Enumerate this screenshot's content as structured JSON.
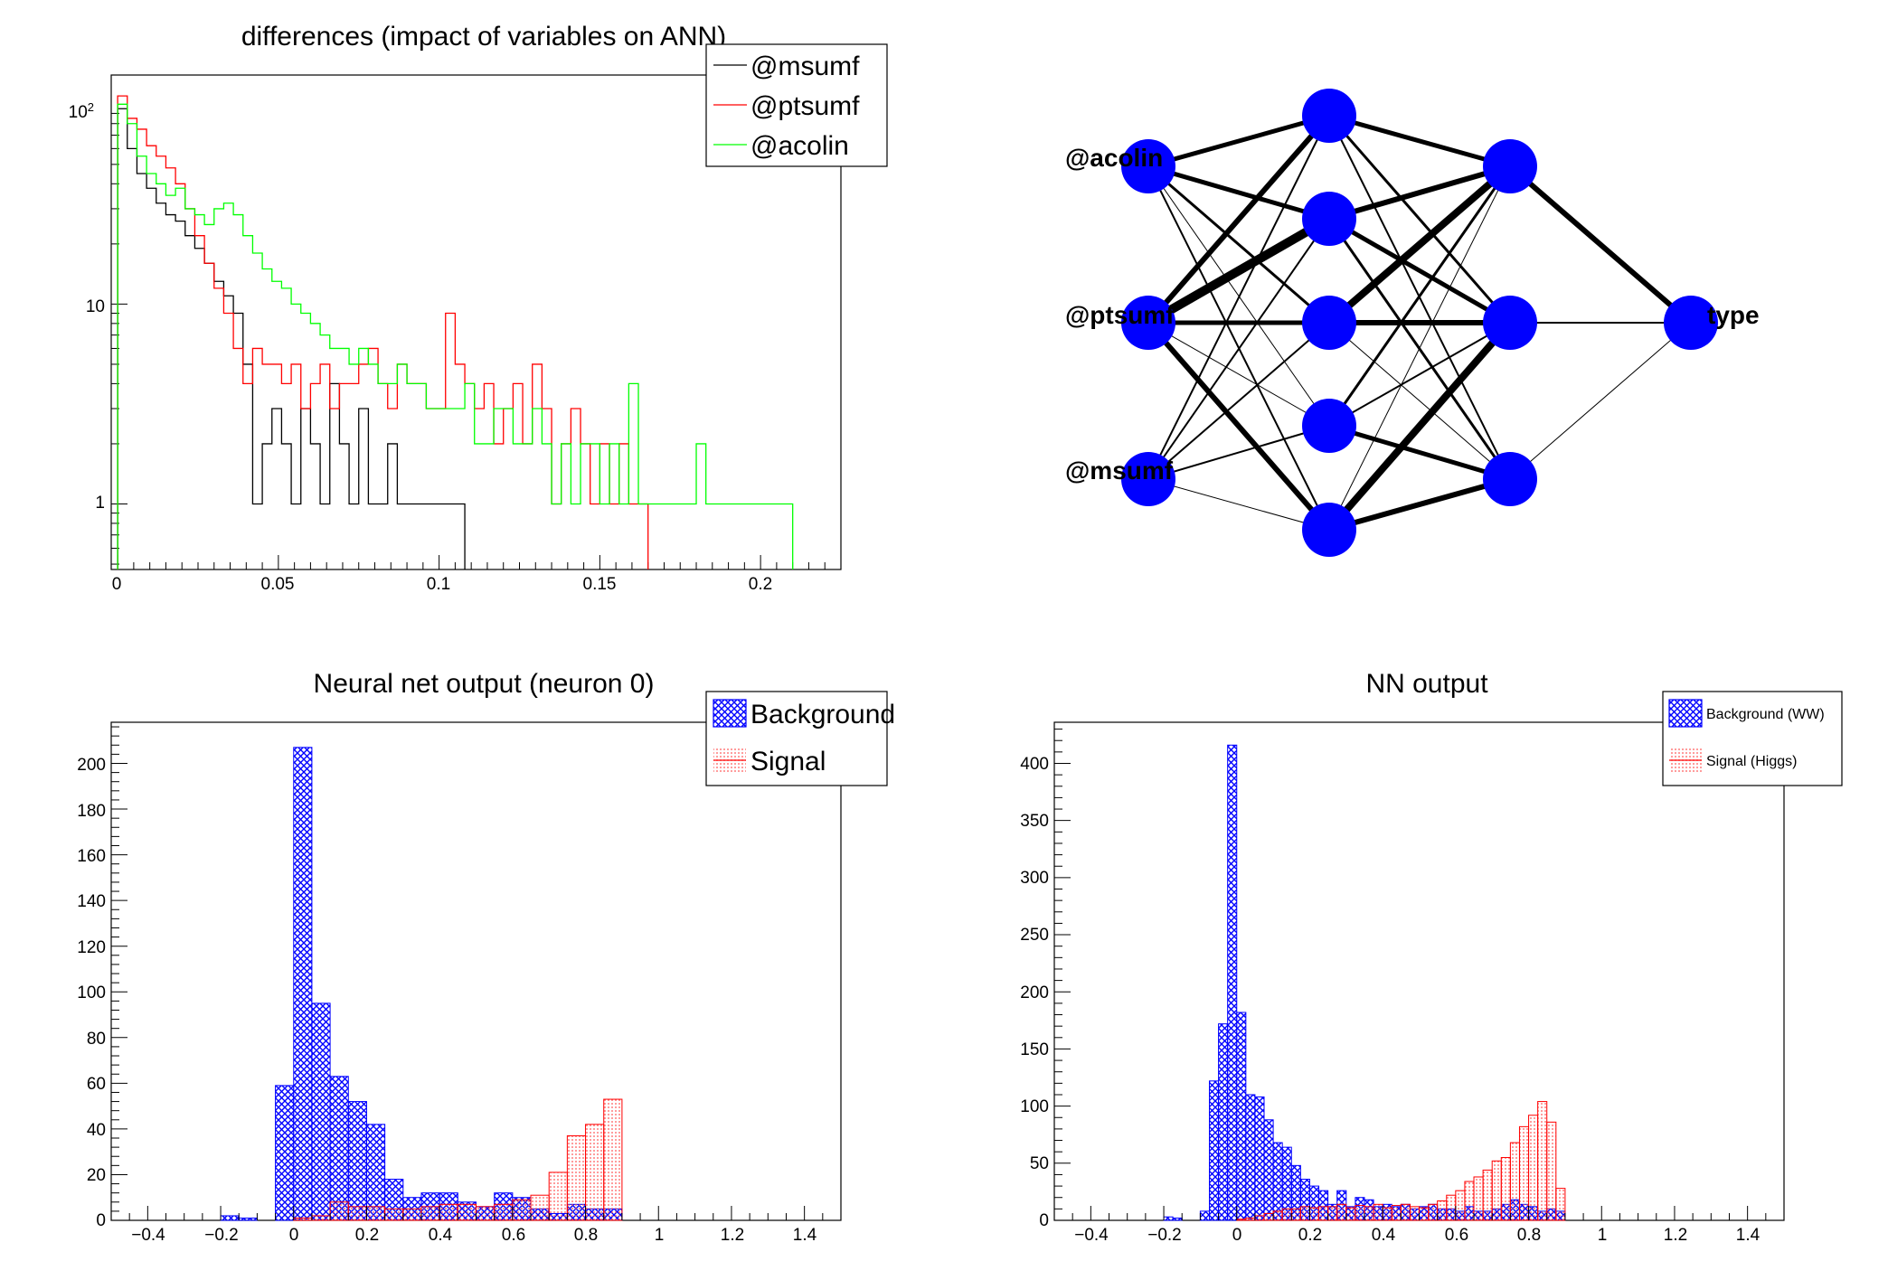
{
  "colors": {
    "msumf": "#000000",
    "ptsumf": "#ff0000",
    "acolin": "#00ff00",
    "background": "#0000ff",
    "signal": "#ff0000",
    "node": "#0000ff"
  },
  "chart_data": [
    {
      "id": "differences",
      "type": "line",
      "title": "differences (impact of variables on ANN)",
      "xlabel": "",
      "ylabel": "",
      "yscale": "log",
      "xlim": [
        -0.002,
        0.225
      ],
      "ylim": [
        0.47,
        140
      ],
      "xticks": [
        0,
        0.05,
        0.1,
        0.15,
        0.2
      ],
      "xtick_labels": [
        "0",
        "0.05",
        "0.1",
        "0.15",
        "0.2"
      ],
      "yticks": [
        1,
        10,
        100
      ],
      "ytick_labels": [
        "1",
        "10",
        "10^2"
      ],
      "legend_position": "top-right",
      "series": [
        {
          "name": "@msumf",
          "x": [
            0,
            0.003,
            0.006,
            0.009,
            0.012,
            0.015,
            0.018,
            0.021,
            0.024,
            0.027,
            0.03,
            0.033,
            0.036,
            0.039,
            0.042,
            0.045,
            0.048,
            0.051,
            0.054,
            0.057,
            0.06,
            0.063,
            0.066,
            0.069,
            0.072,
            0.075,
            0.078,
            0.081,
            0.084,
            0.087,
            0.09,
            0.093,
            0.096,
            0.099,
            0.102,
            0.105
          ],
          "values": [
            95,
            60,
            45,
            38,
            32,
            28,
            26,
            22,
            19,
            16,
            13,
            11,
            9,
            5,
            1,
            2,
            3,
            2,
            1,
            3,
            2,
            1,
            4,
            2,
            1,
            3,
            1,
            1,
            2,
            1,
            1,
            1,
            1,
            1,
            1,
            1
          ]
        },
        {
          "name": "@ptsumf",
          "x": [
            0,
            0.003,
            0.006,
            0.009,
            0.012,
            0.015,
            0.018,
            0.021,
            0.024,
            0.027,
            0.03,
            0.033,
            0.036,
            0.039,
            0.042,
            0.045,
            0.048,
            0.051,
            0.054,
            0.057,
            0.06,
            0.063,
            0.066,
            0.069,
            0.072,
            0.075,
            0.078,
            0.081,
            0.084,
            0.087,
            0.09,
            0.093,
            0.096,
            0.099,
            0.102,
            0.105,
            0.108,
            0.111,
            0.114,
            0.117,
            0.12,
            0.123,
            0.126,
            0.129,
            0.132,
            0.135,
            0.138,
            0.141,
            0.144,
            0.147,
            0.15,
            0.153,
            0.156,
            0.159,
            0.162
          ],
          "values": [
            110,
            85,
            75,
            62,
            55,
            48,
            40,
            30,
            22,
            16,
            12,
            9,
            6,
            4,
            6,
            5,
            5,
            4,
            5,
            3,
            4,
            5,
            3,
            4,
            4,
            5,
            6,
            4,
            3,
            5,
            4,
            4,
            3,
            3,
            9,
            5,
            4,
            3,
            4,
            2,
            3,
            4,
            2,
            5,
            3,
            1,
            2,
            3,
            2,
            1,
            2,
            1,
            2,
            1,
            1
          ]
        },
        {
          "name": "@acolin",
          "x": [
            0,
            0.003,
            0.006,
            0.009,
            0.012,
            0.015,
            0.018,
            0.021,
            0.024,
            0.027,
            0.03,
            0.033,
            0.036,
            0.039,
            0.042,
            0.045,
            0.048,
            0.051,
            0.054,
            0.057,
            0.06,
            0.063,
            0.066,
            0.069,
            0.072,
            0.075,
            0.078,
            0.081,
            0.084,
            0.087,
            0.09,
            0.093,
            0.096,
            0.099,
            0.102,
            0.105,
            0.108,
            0.111,
            0.114,
            0.117,
            0.12,
            0.123,
            0.126,
            0.129,
            0.132,
            0.135,
            0.138,
            0.141,
            0.144,
            0.147,
            0.15,
            0.153,
            0.156,
            0.159,
            0.162,
            0.165,
            0.168,
            0.171,
            0.174,
            0.177,
            0.18,
            0.183,
            0.186,
            0.189,
            0.192,
            0.195,
            0.198,
            0.201,
            0.204,
            0.207
          ],
          "values": [
            100,
            80,
            55,
            45,
            40,
            35,
            38,
            30,
            28,
            25,
            30,
            32,
            28,
            22,
            18,
            15,
            13,
            12,
            10,
            9,
            8,
            7,
            6,
            6,
            5,
            6,
            5,
            4,
            4,
            5,
            4,
            4,
            3,
            3,
            3,
            3,
            4,
            2,
            2,
            3,
            3,
            2,
            2,
            3,
            2,
            1,
            2,
            1,
            2,
            2,
            1,
            2,
            1,
            4,
            1,
            1,
            1,
            1,
            1,
            1,
            2,
            1,
            1,
            1,
            1,
            1,
            1,
            1,
            1,
            1
          ]
        }
      ]
    },
    {
      "id": "nn-output-neuron0",
      "type": "bar",
      "title": "Neural net output (neuron 0)",
      "xlabel": "",
      "ylabel": "",
      "xlim": [
        -0.5,
        1.5
      ],
      "ylim": [
        0,
        218
      ],
      "bin_width": 0.05,
      "xticks": [
        -0.4,
        -0.2,
        0,
        0.2,
        0.4,
        0.6,
        0.8,
        1,
        1.2,
        1.4
      ],
      "xtick_labels": [
        "−0.4",
        "−0.2",
        "0",
        "0.2",
        "0.4",
        "0.6",
        "0.8",
        "1",
        "1.2",
        "1.4"
      ],
      "yticks": [
        0,
        20,
        40,
        60,
        80,
        100,
        120,
        140,
        160,
        180,
        200
      ],
      "ytick_labels": [
        "0",
        "20",
        "40",
        "60",
        "80",
        "100",
        "120",
        "140",
        "160",
        "180",
        "200"
      ],
      "legend_position": "top-right",
      "series": [
        {
          "name": "Background",
          "bin_starts": [
            -0.2,
            -0.15,
            -0.05,
            0,
            0.05,
            0.1,
            0.15,
            0.2,
            0.25,
            0.3,
            0.35,
            0.4,
            0.45,
            0.5,
            0.55,
            0.6,
            0.65,
            0.7,
            0.75,
            0.8,
            0.85
          ],
          "values": [
            2,
            1,
            59,
            207,
            95,
            63,
            52,
            42,
            18,
            10,
            12,
            12,
            8,
            6,
            12,
            10,
            5,
            3,
            7,
            5,
            5
          ]
        },
        {
          "name": "Signal",
          "bin_starts": [
            -0.2,
            -0.15,
            -0.05,
            0,
            0.05,
            0.1,
            0.15,
            0.2,
            0.25,
            0.3,
            0.35,
            0.4,
            0.45,
            0.5,
            0.55,
            0.6,
            0.65,
            0.7,
            0.75,
            0.8,
            0.85
          ],
          "values": [
            0,
            0,
            0,
            1,
            2,
            8,
            6,
            6,
            5,
            5,
            6,
            7,
            7,
            6,
            7,
            9,
            11,
            21,
            37,
            42,
            53
          ]
        }
      ]
    },
    {
      "id": "nn-output",
      "type": "bar",
      "title": "NN output",
      "xlabel": "",
      "ylabel": "",
      "xlim": [
        -0.5,
        1.5
      ],
      "ylim": [
        0,
        436
      ],
      "bin_width": 0.025,
      "xticks": [
        -0.4,
        -0.2,
        0,
        0.2,
        0.4,
        0.6,
        0.8,
        1,
        1.2,
        1.4
      ],
      "xtick_labels": [
        "−0.4",
        "−0.2",
        "0",
        "0.2",
        "0.4",
        "0.6",
        "0.8",
        "1",
        "1.2",
        "1.4"
      ],
      "yticks": [
        0,
        50,
        100,
        150,
        200,
        250,
        300,
        350,
        400
      ],
      "ytick_labels": [
        "0",
        "50",
        "100",
        "150",
        "200",
        "250",
        "300",
        "350",
        "400"
      ],
      "legend_position": "top-right",
      "series": [
        {
          "name": "Background (WW)",
          "bin_starts": [
            -0.2,
            -0.175,
            -0.1,
            -0.075,
            -0.05,
            -0.025,
            0,
            0.025,
            0.05,
            0.075,
            0.1,
            0.125,
            0.15,
            0.175,
            0.2,
            0.225,
            0.25,
            0.275,
            0.3,
            0.325,
            0.35,
            0.375,
            0.4,
            0.425,
            0.45,
            0.475,
            0.5,
            0.525,
            0.55,
            0.575,
            0.6,
            0.625,
            0.65,
            0.675,
            0.7,
            0.725,
            0.75,
            0.775,
            0.8,
            0.825,
            0.85,
            0.875
          ],
          "values": [
            3,
            2,
            8,
            122,
            172,
            416,
            182,
            110,
            108,
            88,
            68,
            64,
            48,
            36,
            30,
            26,
            14,
            26,
            12,
            20,
            18,
            12,
            14,
            12,
            14,
            10,
            12,
            14,
            10,
            10,
            8,
            12,
            8,
            8,
            10,
            14,
            18,
            14,
            12,
            8,
            10,
            8
          ]
        },
        {
          "name": "Signal (Higgs)",
          "bin_starts": [
            -0.2,
            -0.175,
            -0.1,
            -0.075,
            -0.05,
            -0.025,
            0,
            0.025,
            0.05,
            0.075,
            0.1,
            0.125,
            0.15,
            0.175,
            0.2,
            0.225,
            0.25,
            0.275,
            0.3,
            0.325,
            0.35,
            0.375,
            0.4,
            0.425,
            0.45,
            0.475,
            0.5,
            0.525,
            0.55,
            0.575,
            0.6,
            0.625,
            0.65,
            0.675,
            0.7,
            0.725,
            0.75,
            0.775,
            0.8,
            0.825,
            0.85,
            0.875
          ],
          "values": [
            0,
            0,
            0,
            0,
            0,
            0,
            1,
            2,
            4,
            6,
            8,
            10,
            10,
            12,
            11,
            12,
            12,
            14,
            11,
            13,
            12,
            14,
            11,
            13,
            14,
            12,
            11,
            14,
            17,
            22,
            26,
            34,
            38,
            44,
            52,
            55,
            68,
            82,
            92,
            104,
            86,
            28
          ]
        }
      ]
    }
  ],
  "network": {
    "input_labels": [
      "@acolin",
      "@ptsumf",
      "@msumf"
    ],
    "output_label": "type",
    "layers": [
      3,
      5,
      3,
      1
    ]
  }
}
